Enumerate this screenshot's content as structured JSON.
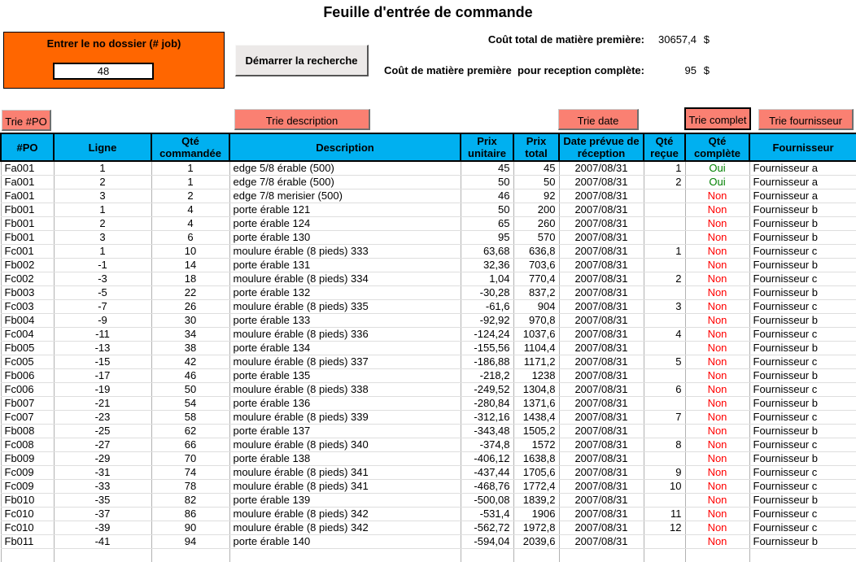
{
  "title": "Feuille d'entrée de commande",
  "colors": {
    "panel_orange": "#FF6600",
    "header_cyan": "#00B0F0",
    "sort_button_pink": "#FA8072",
    "status_oui_green": "#008000",
    "status_non_red": "#FF0000"
  },
  "job_panel": {
    "label": "Entrer le no dossier (# job)",
    "value": "48"
  },
  "search_button_label": "Démarrer la recherche",
  "totals": {
    "total_label": "Coût total de matière première:",
    "total_value": "30657,4",
    "total_currency": "$",
    "complete_label": "Coût de matière première  pour reception complète:",
    "complete_value": "95",
    "complete_currency": "$"
  },
  "sort_buttons": {
    "po": "Trie #PO",
    "description": "Trie description",
    "date": "Trie date",
    "complete": "Trie complet",
    "supplier": "Trie fournisseur"
  },
  "table": {
    "headers": [
      "#PO",
      "Ligne",
      "Qté commandée",
      "Description",
      "Prix unitaire",
      "Prix total",
      "Date prévue de réception",
      "Qté reçue",
      "Qté complète",
      "Fournisseur"
    ],
    "trailing_empty_rows": 1,
    "rows": [
      [
        "Fa001",
        "1",
        "1",
        "edge 5/8 érable (500)",
        "45",
        "45",
        "2007/08/31",
        "1",
        "Oui",
        "Fournisseur a"
      ],
      [
        "Fa001",
        "2",
        "1",
        "edge 7/8 érable (500)",
        "50",
        "50",
        "2007/08/31",
        "2",
        "Oui",
        "Fournisseur a"
      ],
      [
        "Fa001",
        "3",
        "2",
        "edge 7/8 merisier (500)",
        "46",
        "92",
        "2007/08/31",
        "",
        "Non",
        "Fournisseur a"
      ],
      [
        "Fb001",
        "1",
        "4",
        "porte érable 121",
        "50",
        "200",
        "2007/08/31",
        "",
        "Non",
        "Fournisseur b"
      ],
      [
        "Fb001",
        "2",
        "4",
        "porte érable 124",
        "65",
        "260",
        "2007/08/31",
        "",
        "Non",
        "Fournisseur b"
      ],
      [
        "Fb001",
        "3",
        "6",
        "porte érable 130",
        "95",
        "570",
        "2007/08/31",
        "",
        "Non",
        "Fournisseur b"
      ],
      [
        "Fc001",
        "1",
        "10",
        "moulure érable (8 pieds) 333",
        "63,68",
        "636,8",
        "2007/08/31",
        "1",
        "Non",
        "Fournisseur c"
      ],
      [
        "Fb002",
        "-1",
        "14",
        "porte érable 131",
        "32,36",
        "703,6",
        "2007/08/31",
        "",
        "Non",
        "Fournisseur b"
      ],
      [
        "Fc002",
        "-3",
        "18",
        "moulure érable (8 pieds) 334",
        "1,04",
        "770,4",
        "2007/08/31",
        "2",
        "Non",
        "Fournisseur c"
      ],
      [
        "Fb003",
        "-5",
        "22",
        "porte érable 132",
        "-30,28",
        "837,2",
        "2007/08/31",
        "",
        "Non",
        "Fournisseur b"
      ],
      [
        "Fc003",
        "-7",
        "26",
        "moulure érable (8 pieds) 335",
        "-61,6",
        "904",
        "2007/08/31",
        "3",
        "Non",
        "Fournisseur c"
      ],
      [
        "Fb004",
        "-9",
        "30",
        "porte érable 133",
        "-92,92",
        "970,8",
        "2007/08/31",
        "",
        "Non",
        "Fournisseur b"
      ],
      [
        "Fc004",
        "-11",
        "34",
        "moulure érable (8 pieds) 336",
        "-124,24",
        "1037,6",
        "2007/08/31",
        "4",
        "Non",
        "Fournisseur c"
      ],
      [
        "Fb005",
        "-13",
        "38",
        "porte érable 134",
        "-155,56",
        "1104,4",
        "2007/08/31",
        "",
        "Non",
        "Fournisseur b"
      ],
      [
        "Fc005",
        "-15",
        "42",
        "moulure érable (8 pieds) 337",
        "-186,88",
        "1171,2",
        "2007/08/31",
        "5",
        "Non",
        "Fournisseur c"
      ],
      [
        "Fb006",
        "-17",
        "46",
        "porte érable 135",
        "-218,2",
        "1238",
        "2007/08/31",
        "",
        "Non",
        "Fournisseur b"
      ],
      [
        "Fc006",
        "-19",
        "50",
        "moulure érable (8 pieds) 338",
        "-249,52",
        "1304,8",
        "2007/08/31",
        "6",
        "Non",
        "Fournisseur c"
      ],
      [
        "Fb007",
        "-21",
        "54",
        "porte érable 136",
        "-280,84",
        "1371,6",
        "2007/08/31",
        "",
        "Non",
        "Fournisseur b"
      ],
      [
        "Fc007",
        "-23",
        "58",
        "moulure érable (8 pieds) 339",
        "-312,16",
        "1438,4",
        "2007/08/31",
        "7",
        "Non",
        "Fournisseur c"
      ],
      [
        "Fb008",
        "-25",
        "62",
        "porte érable 137",
        "-343,48",
        "1505,2",
        "2007/08/31",
        "",
        "Non",
        "Fournisseur b"
      ],
      [
        "Fc008",
        "-27",
        "66",
        "moulure érable (8 pieds) 340",
        "-374,8",
        "1572",
        "2007/08/31",
        "8",
        "Non",
        "Fournisseur c"
      ],
      [
        "Fb009",
        "-29",
        "70",
        "porte érable 138",
        "-406,12",
        "1638,8",
        "2007/08/31",
        "",
        "Non",
        "Fournisseur b"
      ],
      [
        "Fc009",
        "-31",
        "74",
        "moulure érable (8 pieds) 341",
        "-437,44",
        "1705,6",
        "2007/08/31",
        "9",
        "Non",
        "Fournisseur c"
      ],
      [
        "Fc009",
        "-33",
        "78",
        "moulure érable (8 pieds) 341",
        "-468,76",
        "1772,4",
        "2007/08/31",
        "10",
        "Non",
        "Fournisseur c"
      ],
      [
        "Fb010",
        "-35",
        "82",
        "porte érable 139",
        "-500,08",
        "1839,2",
        "2007/08/31",
        "",
        "Non",
        "Fournisseur b"
      ],
      [
        "Fc010",
        "-37",
        "86",
        "moulure érable (8 pieds) 342",
        "-531,4",
        "1906",
        "2007/08/31",
        "11",
        "Non",
        "Fournisseur c"
      ],
      [
        "Fc010",
        "-39",
        "90",
        "moulure érable (8 pieds) 342",
        "-562,72",
        "1972,8",
        "2007/08/31",
        "12",
        "Non",
        "Fournisseur c"
      ],
      [
        "Fb011",
        "-41",
        "94",
        "porte érable 140",
        "-594,04",
        "2039,6",
        "2007/08/31",
        "",
        "Non",
        "Fournisseur b"
      ]
    ]
  }
}
